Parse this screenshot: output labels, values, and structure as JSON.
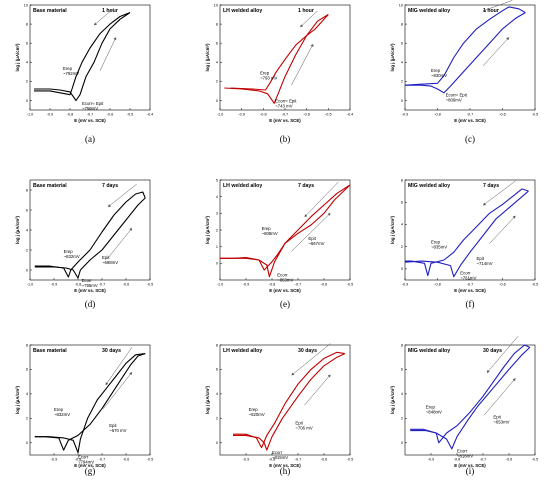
{
  "chart_data": [
    {
      "type": "line",
      "panel": "(a)",
      "title": "Base material",
      "time": "1 hour",
      "color": "#000000",
      "xlabel": "E (mV vs. SCE)",
      "ylabel": "log j (μA/cm²)",
      "xlim": [
        -1.0,
        -0.4
      ],
      "ylim": [
        -1,
        10
      ],
      "xticks": [
        "-1.0",
        "-0.9",
        "-0.8",
        "-0.7",
        "-0.6",
        "-0.5",
        "-0.4"
      ],
      "yticks": [
        "0",
        "2",
        "4",
        "6",
        "8",
        "10"
      ],
      "forward": [
        [
          -0.98,
          1.2
        ],
        [
          -0.9,
          1.2
        ],
        [
          -0.85,
          1.1
        ],
        [
          -0.8,
          0.9
        ],
        [
          -0.77,
          0.0
        ],
        [
          -0.75,
          0.6
        ],
        [
          -0.72,
          2.5
        ],
        [
          -0.68,
          4.0
        ],
        [
          -0.64,
          6.0
        ],
        [
          -0.6,
          7.5
        ],
        [
          -0.55,
          8.5
        ],
        [
          -0.5,
          9.2
        ]
      ],
      "reverse": [
        [
          -0.5,
          9.2
        ],
        [
          -0.55,
          8.8
        ],
        [
          -0.6,
          8.0
        ],
        [
          -0.65,
          7.0
        ],
        [
          -0.7,
          5.5
        ],
        [
          -0.74,
          4.0
        ],
        [
          -0.77,
          2.5
        ],
        [
          -0.79,
          1.2
        ],
        [
          -0.8,
          0.6
        ],
        [
          -0.9,
          1.0
        ],
        [
          -0.98,
          1.0
        ]
      ],
      "annotations": [
        {
          "label": "Erep",
          "value": "~792mV",
          "x": -0.835,
          "y": 3.2
        },
        {
          "label": "Ecorr≈ Epit",
          "value": "~750mV",
          "x": -0.74,
          "y": -0.5
        }
      ]
    },
    {
      "type": "line",
      "panel": "(b)",
      "title": "LH welded alloy",
      "time": "1 hour",
      "color": "#c00000",
      "xlabel": "E (mV vs. SCE)",
      "ylabel": "log j (μA/cm²)",
      "xlim": [
        -1.0,
        -0.4
      ],
      "ylim": [
        -1,
        10
      ],
      "xticks": [
        "-1.0",
        "-0.9",
        "-0.8",
        "-0.7",
        "-0.6",
        "-0.5",
        "-0.4"
      ],
      "yticks": [
        "0",
        "2",
        "4",
        "6",
        "8",
        "10"
      ],
      "forward": [
        [
          -0.98,
          1.3
        ],
        [
          -0.9,
          1.2
        ],
        [
          -0.82,
          1.0
        ],
        [
          -0.78,
          0.7
        ],
        [
          -0.75,
          -0.3
        ],
        [
          -0.73,
          0.8
        ],
        [
          -0.7,
          2.5
        ],
        [
          -0.65,
          4.8
        ],
        [
          -0.6,
          6.8
        ],
        [
          -0.55,
          8.3
        ],
        [
          -0.5,
          9.0
        ]
      ],
      "reverse": [
        [
          -0.5,
          9.0
        ],
        [
          -0.52,
          8.5
        ],
        [
          -0.56,
          7.5
        ],
        [
          -0.6,
          6.8
        ],
        [
          -0.65,
          5.8
        ],
        [
          -0.7,
          4.3
        ],
        [
          -0.74,
          3.0
        ],
        [
          -0.77,
          1.8
        ],
        [
          -0.79,
          1.1
        ],
        [
          -0.85,
          1.2
        ],
        [
          -0.95,
          1.3
        ]
      ],
      "annotations": [
        {
          "label": "Erep",
          "value": "~793 mV",
          "x": -0.815,
          "y": 2.7
        },
        {
          "label": "Ecorr≈ Epit",
          "value": "~743 mV",
          "x": -0.745,
          "y": -0.2
        }
      ]
    },
    {
      "type": "line",
      "panel": "(c)",
      "title": "MIG welded alloy",
      "time": "1 hour",
      "color": "#1f1fbf",
      "xlabel": "E (mV vs. SCE)",
      "ylabel": "log j (μA/cm²)",
      "xlim": [
        -0.9,
        -0.5
      ],
      "ylim": [
        -1,
        10
      ],
      "xticks": [
        "-0.9",
        "-0.8",
        "-0.7",
        "-0.6",
        "-0.5"
      ],
      "yticks": [
        "0",
        "2",
        "4",
        "6",
        "8",
        "10"
      ],
      "forward": [
        [
          -0.9,
          1.6
        ],
        [
          -0.85,
          1.6
        ],
        [
          -0.82,
          1.5
        ],
        [
          -0.8,
          1.2
        ],
        [
          -0.78,
          0.8
        ],
        [
          -0.76,
          1.5
        ],
        [
          -0.72,
          3.0
        ],
        [
          -0.68,
          4.5
        ],
        [
          -0.64,
          6.0
        ],
        [
          -0.6,
          7.5
        ],
        [
          -0.56,
          8.6
        ],
        [
          -0.53,
          9.2
        ]
      ],
      "reverse": [
        [
          -0.53,
          9.2
        ],
        [
          -0.55,
          9.6
        ],
        [
          -0.58,
          9.8
        ],
        [
          -0.6,
          9.4
        ],
        [
          -0.64,
          8.5
        ],
        [
          -0.68,
          7.5
        ],
        [
          -0.72,
          6.0
        ],
        [
          -0.75,
          4.5
        ],
        [
          -0.78,
          2.6
        ],
        [
          -0.8,
          1.8
        ],
        [
          -0.85,
          1.7
        ],
        [
          -0.9,
          1.6
        ]
      ],
      "annotations": [
        {
          "label": "Erep",
          "value": "~830mV",
          "x": -0.82,
          "y": 3.0
        },
        {
          "label": "Ecorr≈ Epit",
          "value": "~806mV",
          "x": -0.775,
          "y": 0.4
        }
      ]
    },
    {
      "type": "line",
      "panel": "(d)",
      "title": "Base material",
      "time": "7 days",
      "color": "#000000",
      "xlabel": "E (mV vs. SCE)",
      "ylabel": "log j (μA/cm²)",
      "xlim": [
        -1.0,
        -0.5
      ],
      "ylim": [
        -1,
        9
      ],
      "xticks": [
        "-1.0",
        "-0.9",
        "-0.8",
        "-0.7",
        "-0.6",
        "-0.5"
      ],
      "yticks": [
        "0",
        "2",
        "4",
        "6",
        "8"
      ],
      "forward": [
        [
          -0.98,
          0.3
        ],
        [
          -0.9,
          0.3
        ],
        [
          -0.85,
          0.2
        ],
        [
          -0.82,
          0.0
        ],
        [
          -0.8,
          -0.8
        ],
        [
          -0.79,
          0.0
        ],
        [
          -0.75,
          1.0
        ],
        [
          -0.7,
          2.0
        ],
        [
          -0.65,
          3.5
        ],
        [
          -0.6,
          5.0
        ],
        [
          -0.55,
          6.5
        ],
        [
          -0.52,
          7.2
        ]
      ],
      "reverse": [
        [
          -0.52,
          7.2
        ],
        [
          -0.53,
          7.8
        ],
        [
          -0.56,
          7.6
        ],
        [
          -0.6,
          6.8
        ],
        [
          -0.65,
          5.5
        ],
        [
          -0.7,
          3.8
        ],
        [
          -0.75,
          2.0
        ],
        [
          -0.8,
          0.8
        ],
        [
          -0.83,
          0.0
        ],
        [
          -0.84,
          -0.7
        ],
        [
          -0.86,
          0.2
        ],
        [
          -0.92,
          0.4
        ],
        [
          -0.98,
          0.4
        ]
      ],
      "annotations": [
        {
          "label": "Erep",
          "value": "~832mV",
          "x": -0.86,
          "y": 1.7
        },
        {
          "label": "Epit",
          "value": "~698mV",
          "x": -0.7,
          "y": 1.1
        },
        {
          "label": "Ecorr",
          "value": "~795mV",
          "x": -0.785,
          "y": -1.2
        }
      ]
    },
    {
      "type": "line",
      "panel": "(e)",
      "title": "LH welded alloy",
      "time": "7 days",
      "color": "#c00000",
      "xlabel": "E (mV vs. SCE)",
      "ylabel": "log j (μA/cm²)",
      "xlim": [
        -1.0,
        -0.5
      ],
      "ylim": [
        -1,
        5
      ],
      "xticks": [
        "-1.0",
        "-0.9",
        "-0.8",
        "-0.7",
        "-0.6",
        "-0.5"
      ],
      "yticks": [
        "0",
        "1",
        "2",
        "3",
        "4",
        "5"
      ],
      "forward": [
        [
          -1.0,
          0.3
        ],
        [
          -0.95,
          0.3
        ],
        [
          -0.9,
          0.35
        ],
        [
          -0.85,
          0.2
        ],
        [
          -0.82,
          -0.1
        ],
        [
          -0.81,
          -0.8
        ],
        [
          -0.79,
          0.1
        ],
        [
          -0.75,
          1.2
        ],
        [
          -0.7,
          2.0
        ],
        [
          -0.65,
          2.8
        ],
        [
          -0.6,
          3.5
        ],
        [
          -0.55,
          4.2
        ],
        [
          -0.5,
          4.7
        ]
      ],
      "reverse": [
        [
          -0.5,
          4.7
        ],
        [
          -0.52,
          4.4
        ],
        [
          -0.56,
          3.8
        ],
        [
          -0.6,
          3.0
        ],
        [
          -0.65,
          2.3
        ],
        [
          -0.7,
          1.8
        ],
        [
          -0.75,
          1.2
        ],
        [
          -0.78,
          0.5
        ],
        [
          -0.8,
          0.1
        ],
        [
          -0.83,
          -0.4
        ],
        [
          -0.85,
          0.2
        ],
        [
          -0.9,
          0.3
        ],
        [
          -1.0,
          0.3
        ]
      ],
      "annotations": [
        {
          "label": "Erep",
          "value": "~808mV",
          "x": -0.84,
          "y": 2.0
        },
        {
          "label": "Epit",
          "value": "~667mV",
          "x": -0.66,
          "y": 1.4
        },
        {
          "label": "Ecorr",
          "value": "~853mV",
          "x": -0.78,
          "y": -0.8
        }
      ]
    },
    {
      "type": "line",
      "panel": "(f)",
      "title": "MIG welded alloy",
      "time": "7 days",
      "color": "#1f1fbf",
      "xlabel": "E (mV vs. SCE)",
      "ylabel": "log j (μA/cm²)",
      "xlim": [
        -0.9,
        -0.5
      ],
      "ylim": [
        -1,
        8
      ],
      "xticks": [
        "-0.9",
        "-0.8",
        "-0.7",
        "-0.6",
        "-0.5"
      ],
      "yticks": [
        "0",
        "2",
        "4",
        "6",
        "8"
      ],
      "forward": [
        [
          -0.9,
          0.6
        ],
        [
          -0.85,
          0.7
        ],
        [
          -0.8,
          0.6
        ],
        [
          -0.76,
          0.3
        ],
        [
          -0.75,
          -0.7
        ],
        [
          -0.73,
          0.3
        ],
        [
          -0.7,
          1.5
        ],
        [
          -0.66,
          3.0
        ],
        [
          -0.62,
          4.5
        ],
        [
          -0.58,
          5.5
        ],
        [
          -0.54,
          6.5
        ],
        [
          -0.52,
          7.0
        ]
      ],
      "reverse": [
        [
          -0.52,
          7.0
        ],
        [
          -0.54,
          7.2
        ],
        [
          -0.57,
          6.5
        ],
        [
          -0.6,
          5.8
        ],
        [
          -0.64,
          5.0
        ],
        [
          -0.68,
          3.8
        ],
        [
          -0.72,
          2.6
        ],
        [
          -0.75,
          1.5
        ],
        [
          -0.78,
          0.8
        ],
        [
          -0.82,
          0.5
        ],
        [
          -0.83,
          -0.6
        ],
        [
          -0.84,
          0.5
        ],
        [
          -0.88,
          0.7
        ],
        [
          -0.9,
          0.7
        ]
      ],
      "annotations": [
        {
          "label": "Erep",
          "value": "~835mV",
          "x": -0.82,
          "y": 2.3
        },
        {
          "label": "Epit",
          "value": "~714mV",
          "x": -0.68,
          "y": 0.8
        },
        {
          "label": "Ecorr",
          "value": "~761mV",
          "x": -0.73,
          "y": -0.5
        }
      ]
    },
    {
      "type": "line",
      "panel": "(g)",
      "title": "Base material",
      "time": "30 days",
      "color": "#000000",
      "xlabel": "E (mV vs. SCE)",
      "ylabel": "log j (μA/cm²)",
      "xlim": [
        -1.0,
        -0.5
      ],
      "ylim": [
        -1,
        8
      ],
      "xticks": [
        "-0.9",
        "-0.8",
        "-0.7",
        "-0.6",
        "-0.5"
      ],
      "yticks": [
        "0",
        "2",
        "4",
        "6",
        "8"
      ],
      "forward": [
        [
          -0.98,
          0.5
        ],
        [
          -0.92,
          0.5
        ],
        [
          -0.86,
          0.4
        ],
        [
          -0.82,
          0.2
        ],
        [
          -0.8,
          -0.8
        ],
        [
          -0.79,
          0.3
        ],
        [
          -0.76,
          2.0
        ],
        [
          -0.72,
          3.5
        ],
        [
          -0.68,
          4.5
        ],
        [
          -0.64,
          5.5
        ],
        [
          -0.6,
          6.5
        ],
        [
          -0.56,
          7.2
        ],
        [
          -0.52,
          7.3
        ]
      ],
      "reverse": [
        [
          -0.52,
          7.3
        ],
        [
          -0.55,
          7.1
        ],
        [
          -0.58,
          6.4
        ],
        [
          -0.62,
          5.2
        ],
        [
          -0.66,
          4.0
        ],
        [
          -0.7,
          2.8
        ],
        [
          -0.75,
          1.5
        ],
        [
          -0.8,
          0.6
        ],
        [
          -0.84,
          0.2
        ],
        [
          -0.86,
          -0.6
        ],
        [
          -0.88,
          0.4
        ],
        [
          -0.94,
          0.5
        ],
        [
          -0.98,
          0.5
        ]
      ],
      "annotations": [
        {
          "label": "Erep",
          "value": "~832mV",
          "x": -0.9,
          "y": 2.6
        },
        {
          "label": "Epit",
          "value": "~670 mV",
          "x": -0.67,
          "y": 1.3
        },
        {
          "label": "Ecorr",
          "value": "~794mV",
          "x": -0.8,
          "y": -1.3
        }
      ]
    },
    {
      "type": "line",
      "panel": "(h)",
      "title": "LH welded alloy",
      "time": "30 days",
      "color": "#c00000",
      "xlabel": "E (mV vs. SCE)",
      "ylabel": "log j (μA/cm²)",
      "xlim": [
        -1.0,
        -0.5
      ],
      "ylim": [
        -1,
        8
      ],
      "xticks": [
        "-0.9",
        "-0.8",
        "-0.7",
        "-0.6",
        "-0.5"
      ],
      "yticks": [
        "0",
        "2",
        "4",
        "6",
        "8"
      ],
      "forward": [
        [
          -0.95,
          0.6
        ],
        [
          -0.9,
          0.6
        ],
        [
          -0.85,
          0.4
        ],
        [
          -0.83,
          0.0
        ],
        [
          -0.82,
          -0.6
        ],
        [
          -0.8,
          0.5
        ],
        [
          -0.76,
          2.0
        ],
        [
          -0.7,
          3.8
        ],
        [
          -0.65,
          5.2
        ],
        [
          -0.6,
          6.3
        ],
        [
          -0.55,
          7.0
        ],
        [
          -0.52,
          7.3
        ]
      ],
      "reverse": [
        [
          -0.52,
          7.3
        ],
        [
          -0.55,
          7.4
        ],
        [
          -0.6,
          6.9
        ],
        [
          -0.65,
          6.0
        ],
        [
          -0.7,
          4.8
        ],
        [
          -0.75,
          3.2
        ],
        [
          -0.79,
          1.6
        ],
        [
          -0.82,
          0.6
        ],
        [
          -0.84,
          -0.4
        ],
        [
          -0.86,
          0.4
        ],
        [
          -0.9,
          0.7
        ],
        [
          -0.95,
          0.7
        ]
      ],
      "annotations": [
        {
          "label": "Erep",
          "value": "~820mV",
          "x": -0.89,
          "y": 2.6
        },
        {
          "label": "Epit",
          "value": "~706 mV",
          "x": -0.71,
          "y": 1.5
        },
        {
          "label": "Ecorr",
          "value": "~815mV",
          "x": -0.8,
          "y": -0.9
        }
      ]
    },
    {
      "type": "line",
      "panel": "(i)",
      "title": "MIG welded alloy",
      "time": "30 days",
      "color": "#1f1fbf",
      "xlabel": "E (mV vs. SCE)",
      "ylabel": "log j (μA/cm²)",
      "xlim": [
        -1.0,
        -0.5
      ],
      "ylim": [
        -1,
        8
      ],
      "xticks": [
        "-0.9",
        "-0.8",
        "-0.7",
        "-0.6",
        "-0.5"
      ],
      "yticks": [
        "0",
        "2",
        "4",
        "6",
        "8"
      ],
      "forward": [
        [
          -0.98,
          1.0
        ],
        [
          -0.92,
          1.0
        ],
        [
          -0.88,
          0.8
        ],
        [
          -0.84,
          0.3
        ],
        [
          -0.82,
          -0.5
        ],
        [
          -0.8,
          0.5
        ],
        [
          -0.76,
          1.8
        ],
        [
          -0.72,
          3.0
        ],
        [
          -0.66,
          4.5
        ],
        [
          -0.6,
          6.0
        ],
        [
          -0.55,
          7.2
        ],
        [
          -0.52,
          7.8
        ]
      ],
      "reverse": [
        [
          -0.52,
          7.8
        ],
        [
          -0.54,
          8.0
        ],
        [
          -0.58,
          7.3
        ],
        [
          -0.62,
          6.2
        ],
        [
          -0.66,
          5.0
        ],
        [
          -0.7,
          3.8
        ],
        [
          -0.75,
          2.5
        ],
        [
          -0.8,
          1.4
        ],
        [
          -0.84,
          0.8
        ],
        [
          -0.87,
          0.0
        ],
        [
          -0.88,
          0.8
        ],
        [
          -0.93,
          1.1
        ],
        [
          -0.98,
          1.1
        ]
      ],
      "annotations": [
        {
          "label": "Erep",
          "value": "~848mV",
          "x": -0.92,
          "y": 2.8
        },
        {
          "label": "Epit",
          "value": "~653mV",
          "x": -0.66,
          "y": 2.0
        },
        {
          "label": "Ecorr",
          "value": "~816mV",
          "x": -0.8,
          "y": -0.8
        }
      ]
    }
  ]
}
